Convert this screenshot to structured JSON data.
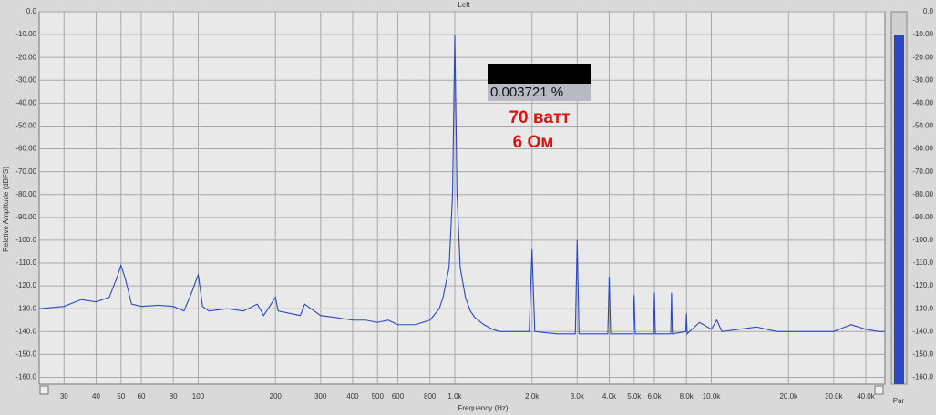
{
  "chart_data": {
    "type": "line",
    "title": "Left",
    "x_label": "Frequency (Hz)",
    "y_label": "Relative Amplitude (dBFS)",
    "log_x": true,
    "grid": true,
    "color": "#2c48c0",
    "x": [
      24,
      30,
      35,
      40,
      45,
      48,
      50,
      52,
      55,
      60,
      70,
      80,
      88,
      95,
      100,
      104,
      110,
      130,
      150,
      170,
      180,
      200,
      205,
      250,
      260,
      300,
      350,
      400,
      450,
      500,
      550,
      600,
      700,
      800,
      870,
      900,
      950,
      980,
      1000,
      1020,
      1050,
      1100,
      1150,
      1200,
      1300,
      1400,
      1500,
      1800,
      1950,
      2000,
      2050,
      2500,
      2950,
      3000,
      3050,
      3500,
      3950,
      4000,
      4050,
      4950,
      5000,
      5050,
      5950,
      6000,
      6050,
      6950,
      7000,
      7050,
      7950,
      8000,
      8050,
      9000,
      10000,
      10500,
      11000,
      15000,
      18000,
      20000,
      25000,
      30000,
      35000,
      40000,
      45000,
      47500
    ],
    "values": [
      -130,
      -129,
      -126,
      -127,
      -125,
      -117,
      -111,
      -117,
      -128,
      -129,
      -128.5,
      -129,
      -131,
      -122,
      -115,
      -129,
      -131,
      -130,
      -131,
      -128,
      -133,
      -125,
      -131,
      -133,
      -128,
      -133,
      -134,
      -135,
      -135,
      -136,
      -135,
      -137,
      -137,
      -135,
      -130,
      -125,
      -112,
      -80,
      -10,
      -80,
      -112,
      -125,
      -131,
      -134,
      -137,
      -139,
      -140,
      -140,
      -140,
      -104,
      -140,
      -141,
      -141,
      -100,
      -141,
      -141,
      -141,
      -116,
      -141,
      -141,
      -124,
      -141,
      -141,
      -123,
      -141,
      -141,
      -123,
      -141,
      -140,
      -132,
      -141,
      -136,
      -139,
      -135,
      -140,
      -138,
      -140,
      -140,
      -140,
      -140,
      -137,
      -139,
      -140,
      -140
    ],
    "xlim": [
      24,
      47500
    ],
    "ylim": [
      -163,
      0
    ],
    "xticks": [
      30,
      40,
      50,
      60,
      80,
      100,
      200,
      300,
      400,
      500,
      600,
      800,
      {
        "value": 1000,
        "label": "1.0k"
      },
      {
        "value": 2000,
        "label": "2.0k"
      },
      {
        "value": 3000,
        "label": "3.0k"
      },
      {
        "value": 4000,
        "label": "4.0k"
      },
      {
        "value": 5000,
        "label": "5.0k"
      },
      {
        "value": 6000,
        "label": "6.0k"
      },
      {
        "value": 8000,
        "label": "8.0k"
      },
      {
        "value": 10000,
        "label": "10.0k"
      },
      {
        "value": 20000,
        "label": "20.0k"
      },
      {
        "value": 30000,
        "label": "30.0k"
      },
      {
        "value": 40000,
        "label": "40.0k"
      }
    ],
    "yticks": [
      {
        "value": 0,
        "label": "0.0"
      },
      {
        "value": -10,
        "label": "-10.00"
      },
      {
        "value": -20,
        "label": "-20.00"
      },
      {
        "value": -30,
        "label": "-30.00"
      },
      {
        "value": -40,
        "label": "-40.00"
      },
      {
        "value": -50,
        "label": "-50.00"
      },
      {
        "value": -60,
        "label": "-60.00"
      },
      {
        "value": -70,
        "label": "-70.00"
      },
      {
        "value": -80,
        "label": "-80.00"
      },
      {
        "value": -90,
        "label": "-90.00"
      },
      {
        "value": -100,
        "label": "-100.0"
      },
      {
        "value": -110,
        "label": "-110.0"
      },
      {
        "value": -120,
        "label": "-120.0"
      },
      {
        "value": -130,
        "label": "-130.0"
      },
      {
        "value": -140,
        "label": "-140.0"
      },
      {
        "value": -150,
        "label": "-150.0"
      },
      {
        "value": -160,
        "label": "-160.0"
      }
    ],
    "annotations": [
      "0.003721 %",
      "70 ватт",
      "6 Ом"
    ],
    "meter_value": -10,
    "meter_label": "Par"
  }
}
